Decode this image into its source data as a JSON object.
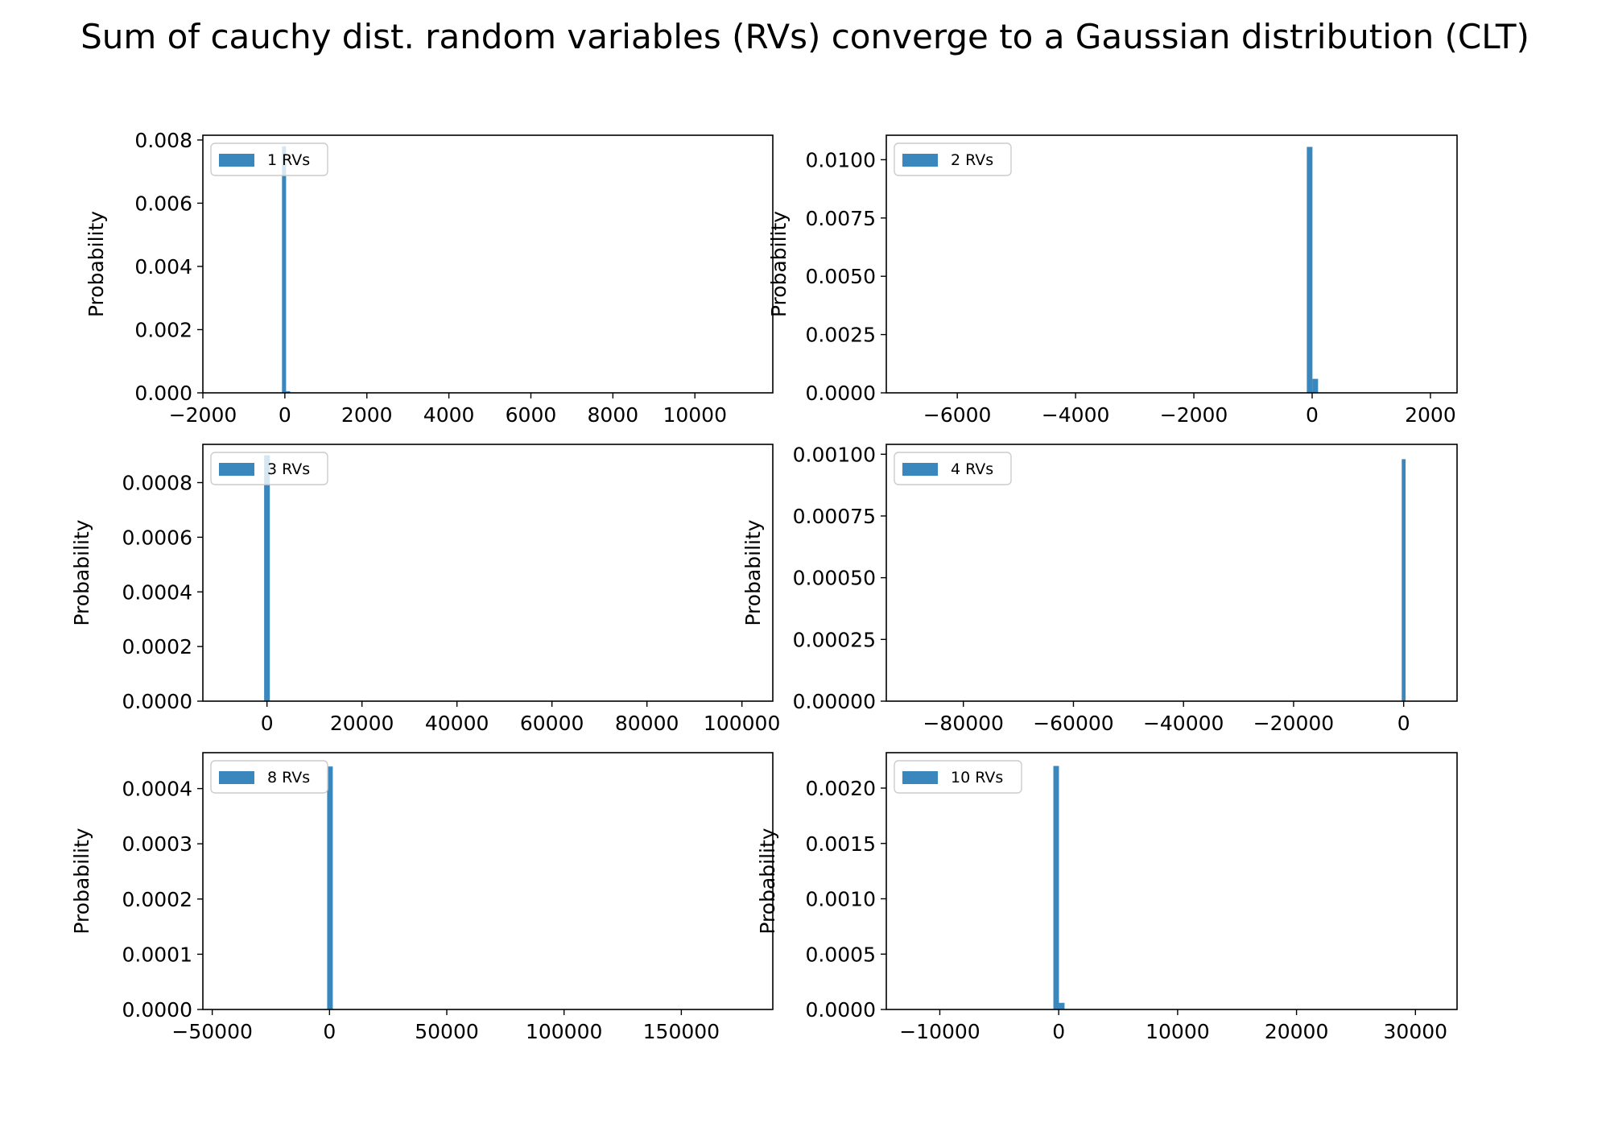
{
  "figure": {
    "title": "Sum of cauchy dist. random variables (RVs) converge to a Gaussian distribution (CLT)",
    "bar_color": "#3a87bd"
  },
  "chart_data": [
    {
      "type": "bar",
      "legend": "1 RVs",
      "legend_position": "upper left",
      "ylabel": "Probability",
      "xlim": [
        -2000,
        11900
      ],
      "ylim": [
        0,
        0.00815
      ],
      "xticks": [
        -2000,
        0,
        2000,
        4000,
        6000,
        8000,
        10000
      ],
      "xticklabels": [
        "−2000",
        "0",
        "2000",
        "4000",
        "6000",
        "8000",
        "10000"
      ],
      "yticks": [
        0,
        0.002,
        0.004,
        0.006,
        0.008
      ],
      "yticklabels": [
        "0.000",
        "0.002",
        "0.004",
        "0.006",
        "0.008"
      ],
      "bins": [
        {
          "x0": -70,
          "x1": 30,
          "value": 0.0078
        },
        {
          "x0": 30,
          "x1": 130,
          "value": 5e-05
        }
      ]
    },
    {
      "type": "bar",
      "legend": "2 RVs",
      "legend_position": "upper left",
      "ylabel": "Probability",
      "xlim": [
        -7200,
        2450
      ],
      "ylim": [
        0,
        0.01105
      ],
      "xticks": [
        -6000,
        -4000,
        -2000,
        0,
        2000
      ],
      "xticklabels": [
        "−6000",
        "−4000",
        "−2000",
        "0",
        "2000"
      ],
      "yticks": [
        0,
        0.0025,
        0.005,
        0.0075,
        0.01
      ],
      "yticklabels": [
        "0.0000",
        "0.0025",
        "0.0050",
        "0.0075",
        "0.0100"
      ],
      "bins": [
        {
          "x0": -90,
          "x1": 5,
          "value": 0.01055
        },
        {
          "x0": 5,
          "x1": 100,
          "value": 0.0006
        }
      ]
    },
    {
      "type": "bar",
      "legend": "3 RVs",
      "legend_position": "upper left",
      "ylabel": "Probability",
      "xlim": [
        -13500,
        106500
      ],
      "ylim": [
        0,
        0.00094
      ],
      "xticks": [
        0,
        20000,
        40000,
        60000,
        80000,
        100000
      ],
      "xticklabels": [
        "0",
        "20000",
        "40000",
        "60000",
        "80000",
        "100000"
      ],
      "yticks": [
        0,
        0.0002,
        0.0004,
        0.0006,
        0.0008
      ],
      "yticklabels": [
        "0.0000",
        "0.0002",
        "0.0004",
        "0.0006",
        "0.0008"
      ],
      "bins": [
        {
          "x0": -600,
          "x1": 600,
          "value": 0.0009
        }
      ]
    },
    {
      "type": "bar",
      "legend": "4 RVs",
      "legend_position": "upper left",
      "ylabel": "Probability",
      "xlim": [
        -94000,
        9700
      ],
      "ylim": [
        0,
        0.00104
      ],
      "xticks": [
        -80000,
        -60000,
        -40000,
        -20000,
        0
      ],
      "xticklabels": [
        "−80000",
        "−60000",
        "−40000",
        "−20000",
        "0"
      ],
      "yticks": [
        0,
        0.00025,
        0.0005,
        0.00075,
        0.001
      ],
      "yticklabels": [
        "0.00000",
        "0.00025",
        "0.00050",
        "0.00075",
        "0.00100"
      ],
      "bins": [
        {
          "x0": -350,
          "x1": 350,
          "value": 0.00098
        }
      ]
    },
    {
      "type": "bar",
      "legend": "8 RVs",
      "legend_position": "upper left",
      "ylabel": "Probability",
      "xlim": [
        -54000,
        189000
      ],
      "ylim": [
        0,
        0.000465
      ],
      "xticks": [
        -50000,
        0,
        50000,
        100000,
        150000
      ],
      "xticklabels": [
        "−50000",
        "0",
        "50000",
        "100000",
        "150000"
      ],
      "yticks": [
        0,
        0.0001,
        0.0002,
        0.0003,
        0.0004
      ],
      "yticklabels": [
        "0.0000",
        "0.0001",
        "0.0002",
        "0.0003",
        "0.0004"
      ],
      "bins": [
        {
          "x0": -1000,
          "x1": 1400,
          "value": 0.00044
        }
      ]
    },
    {
      "type": "bar",
      "legend": "10 RVs",
      "legend_position": "upper left",
      "ylabel": "Probability",
      "xlim": [
        -14500,
        33500
      ],
      "ylim": [
        0,
        0.00232
      ],
      "xticks": [
        -10000,
        0,
        10000,
        20000,
        30000
      ],
      "xticklabels": [
        "−10000",
        "0",
        "10000",
        "20000",
        "30000"
      ],
      "yticks": [
        0,
        0.0005,
        0.001,
        0.0015,
        0.002
      ],
      "yticklabels": [
        "0.0000",
        "0.0005",
        "0.0010",
        "0.0015",
        "0.0020"
      ],
      "bins": [
        {
          "x0": -450,
          "x1": 20,
          "value": 0.0022
        },
        {
          "x0": 20,
          "x1": 490,
          "value": 6e-05
        }
      ]
    }
  ]
}
